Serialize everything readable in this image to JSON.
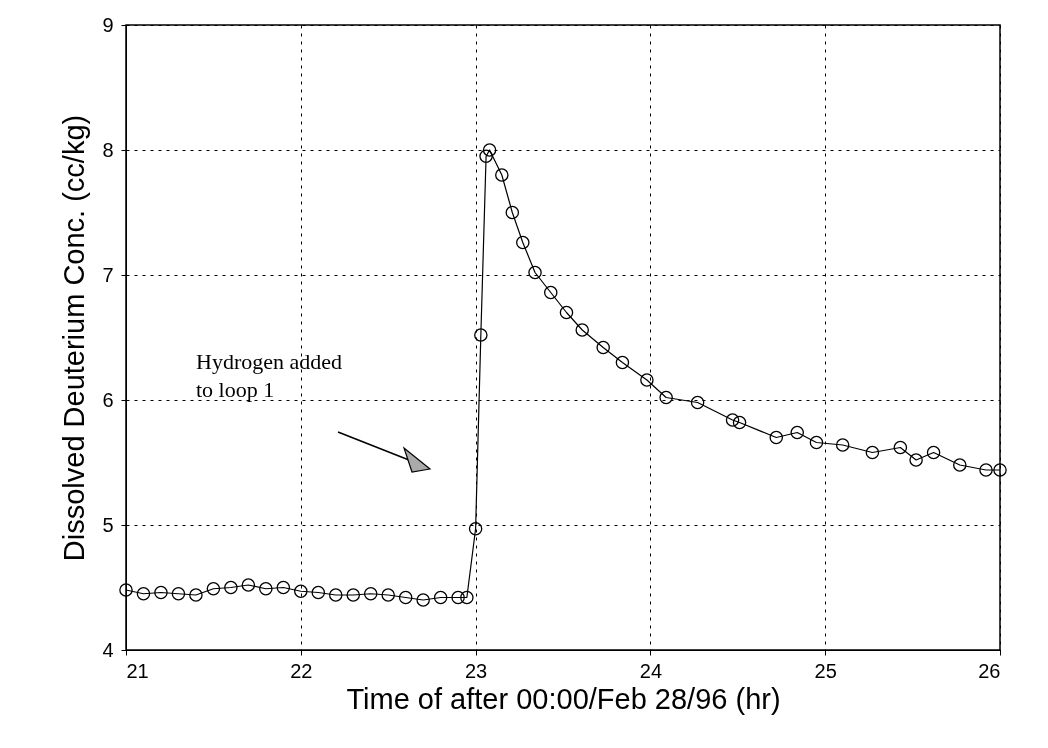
{
  "chart_data": {
    "type": "line",
    "xlabel": "Time of after 00:00/Feb 28/96   (hr)",
    "ylabel": "Dissolved Deuterium  Conc. (cc/kg)",
    "x": [
      21.0,
      21.1,
      21.2,
      21.3,
      21.4,
      21.5,
      21.6,
      21.7,
      21.8,
      21.9,
      22.0,
      22.1,
      22.2,
      22.3,
      22.4,
      22.5,
      22.6,
      22.7,
      22.8,
      22.9,
      22.95,
      23.0,
      23.03,
      23.06,
      23.08,
      23.15,
      23.21,
      23.27,
      23.34,
      23.43,
      23.52,
      23.61,
      23.73,
      23.84,
      23.98,
      24.09,
      24.27,
      24.47,
      24.51,
      24.72,
      24.84,
      24.95,
      25.1,
      25.27,
      25.43,
      25.52,
      25.62,
      25.77,
      25.92,
      26.0
    ],
    "series": [
      {
        "color": "#000000",
        "values": [
          4.48,
          4.45,
          4.46,
          4.45,
          4.44,
          4.49,
          4.5,
          4.52,
          4.49,
          4.5,
          4.47,
          4.46,
          4.44,
          4.44,
          4.45,
          4.44,
          4.42,
          4.4,
          4.42,
          4.42,
          4.42,
          4.97,
          6.52,
          7.95,
          8.0,
          7.8,
          7.5,
          7.26,
          7.02,
          6.86,
          6.7,
          6.56,
          6.42,
          6.3,
          6.16,
          6.02,
          5.98,
          5.84,
          5.82,
          5.7,
          5.74,
          5.66,
          5.64,
          5.58,
          5.62,
          5.52,
          5.58,
          5.48,
          5.44,
          5.44
        ]
      }
    ],
    "xlim": [
      21,
      26
    ],
    "ylim": [
      4,
      9
    ],
    "xticks": [
      21,
      22,
      23,
      24,
      25,
      26
    ],
    "yticks": [
      4,
      5,
      6,
      7,
      8,
      9
    ],
    "grid": true,
    "marker": "circle",
    "line_style": "solid",
    "annotations": [
      "Hydrogen added\nto loop 1"
    ]
  }
}
